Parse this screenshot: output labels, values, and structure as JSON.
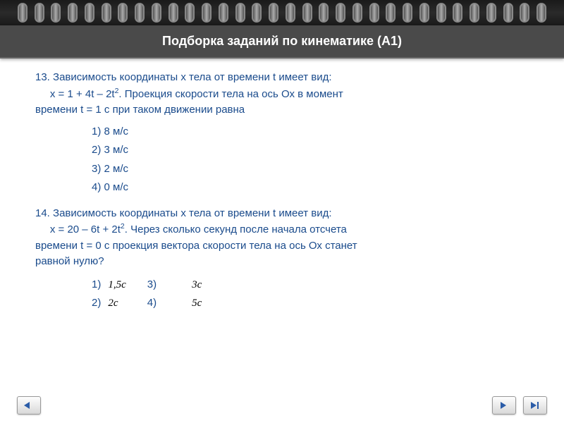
{
  "title": "Подборка заданий по кинематике (А1)",
  "q13": {
    "num": "13.",
    "text_l1": "Зависимость координаты х тела от времени t имеет вид:",
    "text_l2": "х = 1 + 4t – 2t",
    "text_l2_sup": "2",
    "text_l2_after": ". Проекция скорости тела на ось Ох в момент",
    "text_l3": "времени t = 1 c при таком движении равна",
    "opt1": "1) 8 м/с",
    "opt2": "2) 3 м/с",
    "opt3": "3) 2 м/с",
    "opt4": "4) 0 м/с"
  },
  "q14": {
    "num": "14.",
    "text_l1": "Зависимость координаты х тела от времени t имеет вид:",
    "text_l2": "х = 20 – 6t + 2t",
    "text_l2_sup": "2",
    "text_l2_after": ". Через сколько секунд после начала отсчета",
    "text_l3": "времени t = 0 с проекция вектора скорости тела на ось Ох    станет",
    "text_l4": "равной нулю?",
    "opt1_num": "1)",
    "opt1_val": "1,5c",
    "opt2_num": "2)",
    "opt2_val": "2c",
    "opt3_num": "3)",
    "opt3_val": "3c",
    "opt4_num": "4)",
    "opt4_val": "5c"
  },
  "colors": {
    "text": "#1a4b8c",
    "title_bg": "#4a4a4a",
    "title_fg": "#ffffff",
    "black": "#000000"
  },
  "ring_count": 32
}
